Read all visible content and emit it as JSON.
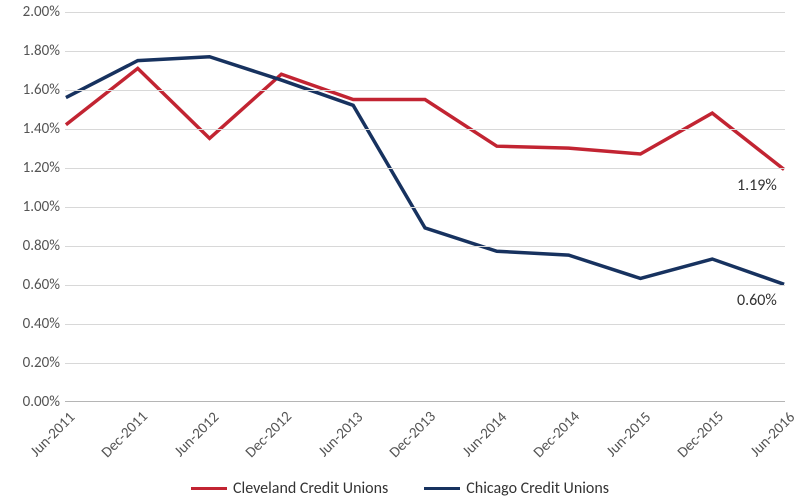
{
  "chart": {
    "type": "line",
    "background_color": "#ffffff",
    "grid_color": "#d8d8d8",
    "axis_color": "#b5b5b5",
    "label_color": "#545454",
    "font_family": "Calibri",
    "y_axis": {
      "min": 0.0,
      "max": 2.0,
      "tick_step": 0.2,
      "tick_labels": [
        "0.00%",
        "0.20%",
        "0.40%",
        "0.60%",
        "0.80%",
        "1.00%",
        "1.20%",
        "1.40%",
        "1.60%",
        "1.80%",
        "2.00%"
      ],
      "label_fontsize": 15
    },
    "x_axis": {
      "categories": [
        "Jun-2011",
        "Dec-2011",
        "Jun-2012",
        "Dec-2012",
        "Jun-2013",
        "Dec-2013",
        "Jun-2014",
        "Dec-2014",
        "Jun-2015",
        "Dec-2015",
        "Jun-2016"
      ],
      "label_rotation_deg": -45,
      "label_fontsize": 15
    },
    "series": [
      {
        "name": "Cleveland Credit Unions",
        "color": "#c22432",
        "line_width": 3.5,
        "values": [
          1.42,
          1.71,
          1.35,
          1.68,
          1.55,
          1.55,
          1.31,
          1.3,
          1.27,
          1.48,
          1.19
        ],
        "end_label": "1.19%"
      },
      {
        "name": "Chicago Credit Unions",
        "color": "#17325f",
        "line_width": 3.5,
        "values": [
          1.56,
          1.75,
          1.77,
          1.65,
          1.52,
          0.89,
          0.77,
          0.75,
          0.63,
          0.73,
          0.6
        ],
        "end_label": "0.60%"
      }
    ],
    "legend": {
      "position": "bottom",
      "fontsize": 16
    }
  }
}
